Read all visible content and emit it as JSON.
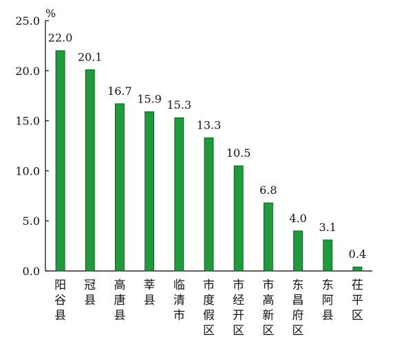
{
  "chart_data": {
    "type": "bar",
    "unit": "%",
    "categories": [
      "阳谷县",
      "冠县",
      "高唐县",
      "莘县",
      "临清市",
      "市度假区",
      "市经开区",
      "市高新区",
      "东昌府区",
      "东阿县",
      "茌平区"
    ],
    "values": [
      22.0,
      20.1,
      16.7,
      15.9,
      15.3,
      13.3,
      10.5,
      6.8,
      4.0,
      3.1,
      0.4
    ],
    "value_labels": [
      "22.0",
      "20.1",
      "16.7",
      "15.9",
      "15.3",
      "13.3",
      "10.5",
      "6.8",
      "4.0",
      "3.1",
      "0.4"
    ],
    "yticks": [
      "0.0",
      "5.0",
      "10.0",
      "15.0",
      "20.0",
      "25.0"
    ],
    "ylim": [
      0,
      25
    ],
    "bar_color": "#1e9c3c",
    "grid": false,
    "legend": "none"
  }
}
